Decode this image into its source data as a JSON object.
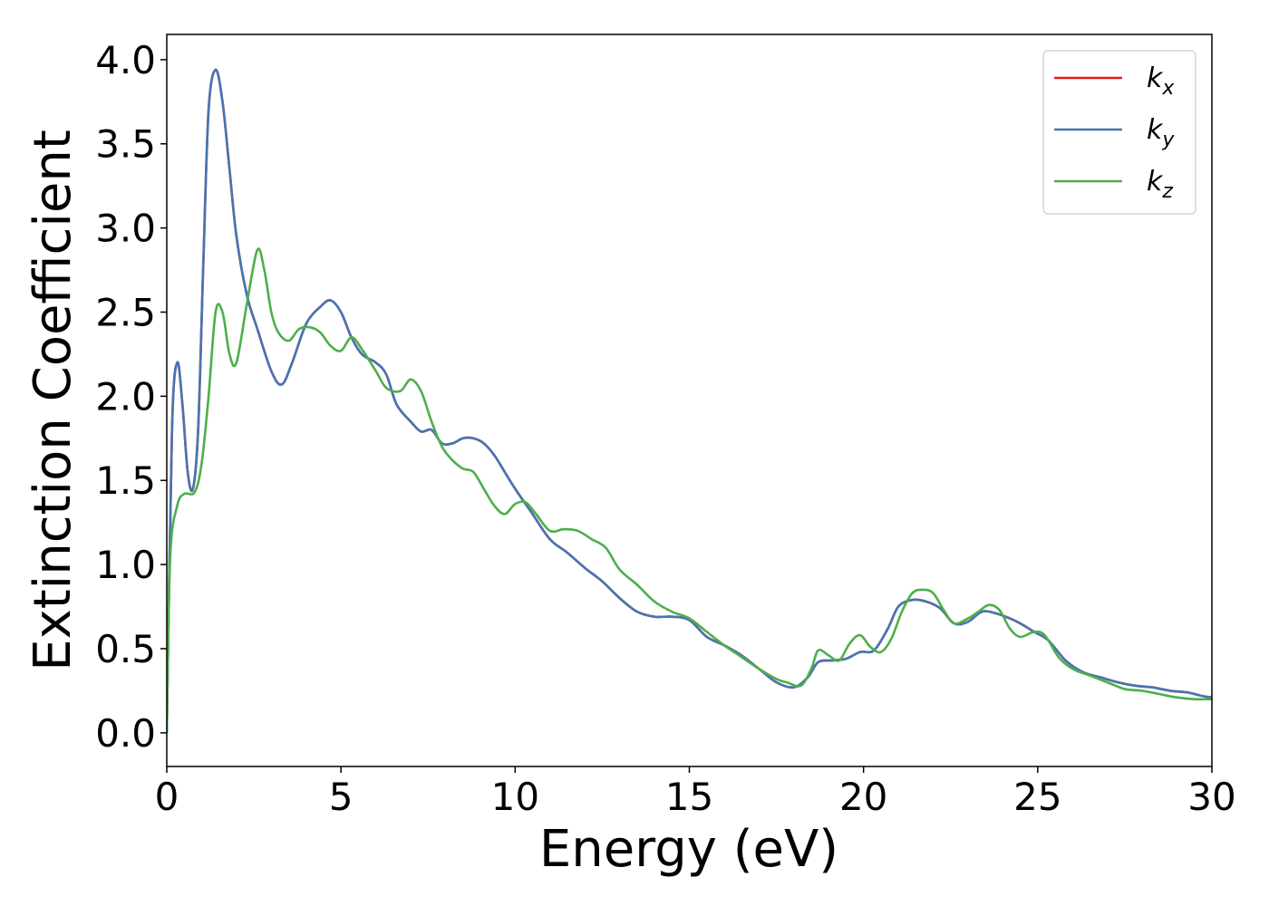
{
  "chart_data": {
    "type": "line",
    "title": "",
    "xlabel": "Energy (eV)",
    "ylabel": "Extinction Coefficient",
    "xlim": [
      0,
      30
    ],
    "ylim": [
      -0.2,
      4.15
    ],
    "xticks": [
      "0",
      "5",
      "10",
      "15",
      "20",
      "25",
      "30"
    ],
    "yticks": [
      "0.0",
      "0.5",
      "1.0",
      "1.5",
      "2.0",
      "2.5",
      "3.0",
      "3.5",
      "4.0"
    ],
    "grid": false,
    "legend_position": "top-right",
    "series": [
      {
        "name": "k_x",
        "legend_base": "k",
        "legend_sub": "x",
        "color": "#e41a1c",
        "x": [
          0,
          0.15,
          0.3,
          0.45,
          0.6,
          0.75,
          0.9,
          1.05,
          1.2,
          1.4,
          1.6,
          1.8,
          2.0,
          2.3,
          2.6,
          3.0,
          3.3,
          3.6,
          4.0,
          4.4,
          4.7,
          5.0,
          5.3,
          5.6,
          6.0,
          6.3,
          6.6,
          7.0,
          7.3,
          7.6,
          7.9,
          8.2,
          8.5,
          8.8,
          9.1,
          9.4,
          9.7,
          10.0,
          10.5,
          11.0,
          11.5,
          12.0,
          12.5,
          13.0,
          13.5,
          14.0,
          14.5,
          15.0,
          15.5,
          16.0,
          16.5,
          17.0,
          17.5,
          18.0,
          18.4,
          18.7,
          19.1,
          19.5,
          19.9,
          20.3,
          20.7,
          21.0,
          21.4,
          21.8,
          22.2,
          22.6,
          23.0,
          23.4,
          23.8,
          24.2,
          24.5,
          24.9,
          25.3,
          25.8,
          26.3,
          26.8,
          27.3,
          27.8,
          28.3,
          28.8,
          29.3,
          29.7,
          30.0
        ],
        "y": [
          0.0,
          1.8,
          2.2,
          1.95,
          1.55,
          1.45,
          1.8,
          2.8,
          3.7,
          3.94,
          3.75,
          3.35,
          2.95,
          2.6,
          2.4,
          2.15,
          2.07,
          2.2,
          2.43,
          2.53,
          2.57,
          2.5,
          2.35,
          2.25,
          2.2,
          2.13,
          1.95,
          1.85,
          1.79,
          1.8,
          1.72,
          1.72,
          1.75,
          1.75,
          1.72,
          1.65,
          1.55,
          1.45,
          1.3,
          1.15,
          1.07,
          0.98,
          0.9,
          0.8,
          0.72,
          0.69,
          0.69,
          0.67,
          0.57,
          0.52,
          0.46,
          0.38,
          0.3,
          0.27,
          0.33,
          0.42,
          0.43,
          0.44,
          0.48,
          0.49,
          0.62,
          0.75,
          0.79,
          0.78,
          0.74,
          0.65,
          0.66,
          0.72,
          0.71,
          0.68,
          0.65,
          0.6,
          0.55,
          0.43,
          0.36,
          0.33,
          0.3,
          0.28,
          0.27,
          0.25,
          0.24,
          0.22,
          0.21
        ]
      },
      {
        "name": "k_y",
        "legend_base": "k",
        "legend_sub": "y",
        "color": "#4575b4",
        "x": [
          0,
          0.15,
          0.3,
          0.45,
          0.6,
          0.75,
          0.9,
          1.05,
          1.2,
          1.4,
          1.6,
          1.8,
          2.0,
          2.3,
          2.6,
          3.0,
          3.3,
          3.6,
          4.0,
          4.4,
          4.7,
          5.0,
          5.3,
          5.6,
          6.0,
          6.3,
          6.6,
          7.0,
          7.3,
          7.6,
          7.9,
          8.2,
          8.5,
          8.8,
          9.1,
          9.4,
          9.7,
          10.0,
          10.5,
          11.0,
          11.5,
          12.0,
          12.5,
          13.0,
          13.5,
          14.0,
          14.5,
          15.0,
          15.5,
          16.0,
          16.5,
          17.0,
          17.5,
          18.0,
          18.4,
          18.7,
          19.1,
          19.5,
          19.9,
          20.3,
          20.7,
          21.0,
          21.4,
          21.8,
          22.2,
          22.6,
          23.0,
          23.4,
          23.8,
          24.2,
          24.5,
          24.9,
          25.3,
          25.8,
          26.3,
          26.8,
          27.3,
          27.8,
          28.3,
          28.8,
          29.3,
          29.7,
          30.0
        ],
        "y": [
          0.0,
          1.8,
          2.2,
          1.95,
          1.55,
          1.45,
          1.8,
          2.8,
          3.7,
          3.94,
          3.75,
          3.35,
          2.95,
          2.6,
          2.4,
          2.15,
          2.07,
          2.2,
          2.43,
          2.53,
          2.57,
          2.5,
          2.35,
          2.25,
          2.2,
          2.13,
          1.95,
          1.85,
          1.79,
          1.8,
          1.72,
          1.72,
          1.75,
          1.75,
          1.72,
          1.65,
          1.55,
          1.45,
          1.3,
          1.15,
          1.07,
          0.98,
          0.9,
          0.8,
          0.72,
          0.69,
          0.69,
          0.67,
          0.57,
          0.52,
          0.46,
          0.38,
          0.3,
          0.27,
          0.33,
          0.42,
          0.43,
          0.44,
          0.48,
          0.49,
          0.62,
          0.75,
          0.79,
          0.78,
          0.74,
          0.65,
          0.66,
          0.72,
          0.71,
          0.68,
          0.65,
          0.6,
          0.55,
          0.43,
          0.36,
          0.33,
          0.3,
          0.28,
          0.27,
          0.25,
          0.24,
          0.22,
          0.21
        ]
      },
      {
        "name": "k_z",
        "legend_base": "k",
        "legend_sub": "z",
        "color": "#4daf4a",
        "x": [
          0,
          0.1,
          0.3,
          0.5,
          0.8,
          1.0,
          1.2,
          1.4,
          1.6,
          1.8,
          2.0,
          2.3,
          2.6,
          2.8,
          3.0,
          3.2,
          3.5,
          3.8,
          4.1,
          4.4,
          4.7,
          5.0,
          5.3,
          5.6,
          6.0,
          6.3,
          6.7,
          7.0,
          7.3,
          7.6,
          7.9,
          8.2,
          8.5,
          8.8,
          9.1,
          9.4,
          9.7,
          10.0,
          10.3,
          10.6,
          11.0,
          11.4,
          11.8,
          12.2,
          12.6,
          13.0,
          13.5,
          14.0,
          14.5,
          15.0,
          15.5,
          16.0,
          16.5,
          17.0,
          17.5,
          17.8,
          18.2,
          18.5,
          18.7,
          19.0,
          19.3,
          19.6,
          19.9,
          20.2,
          20.5,
          20.8,
          21.1,
          21.4,
          21.7,
          22.0,
          22.3,
          22.6,
          23.0,
          23.3,
          23.6,
          23.9,
          24.2,
          24.5,
          24.9,
          25.2,
          25.6,
          26.0,
          26.5,
          27.0,
          27.5,
          28.0,
          28.5,
          29.0,
          29.5,
          30.0
        ],
        "y": [
          0.0,
          1.05,
          1.35,
          1.42,
          1.43,
          1.6,
          2.0,
          2.5,
          2.5,
          2.25,
          2.2,
          2.55,
          2.87,
          2.75,
          2.5,
          2.38,
          2.33,
          2.4,
          2.41,
          2.38,
          2.3,
          2.27,
          2.35,
          2.28,
          2.15,
          2.05,
          2.03,
          2.1,
          2.03,
          1.85,
          1.7,
          1.62,
          1.57,
          1.55,
          1.45,
          1.35,
          1.3,
          1.36,
          1.37,
          1.3,
          1.2,
          1.21,
          1.2,
          1.15,
          1.1,
          0.97,
          0.88,
          0.78,
          0.72,
          0.68,
          0.6,
          0.52,
          0.45,
          0.38,
          0.32,
          0.3,
          0.28,
          0.38,
          0.49,
          0.46,
          0.43,
          0.53,
          0.58,
          0.51,
          0.48,
          0.56,
          0.72,
          0.83,
          0.85,
          0.83,
          0.73,
          0.65,
          0.68,
          0.72,
          0.76,
          0.73,
          0.62,
          0.57,
          0.6,
          0.58,
          0.45,
          0.38,
          0.34,
          0.3,
          0.26,
          0.25,
          0.23,
          0.21,
          0.2,
          0.2
        ]
      }
    ]
  }
}
